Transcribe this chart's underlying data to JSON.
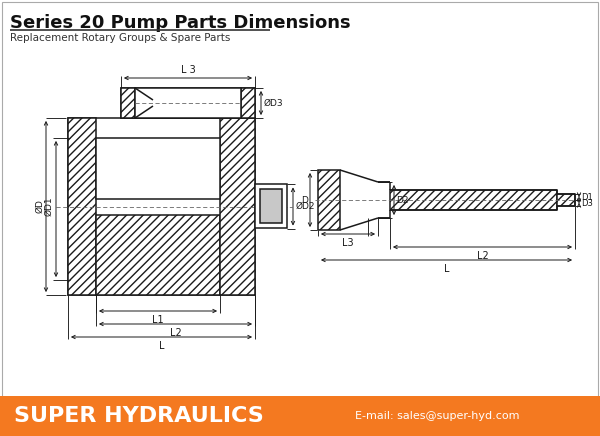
{
  "title": "Series 20 Pump Parts Dimensions",
  "subtitle": "Replacement Rotary Groups & Spare Parts",
  "footer_bg": "#F47920",
  "footer_text": "SUPER HYDRAULICS",
  "footer_email": "E-mail: sales@super-hyd.com",
  "bg_color": "#FFFFFF",
  "line_color": "#1A1A1A",
  "dim_color": "#1A1A1A",
  "hatch_color": "#333333",
  "centerline_color": "#666666"
}
